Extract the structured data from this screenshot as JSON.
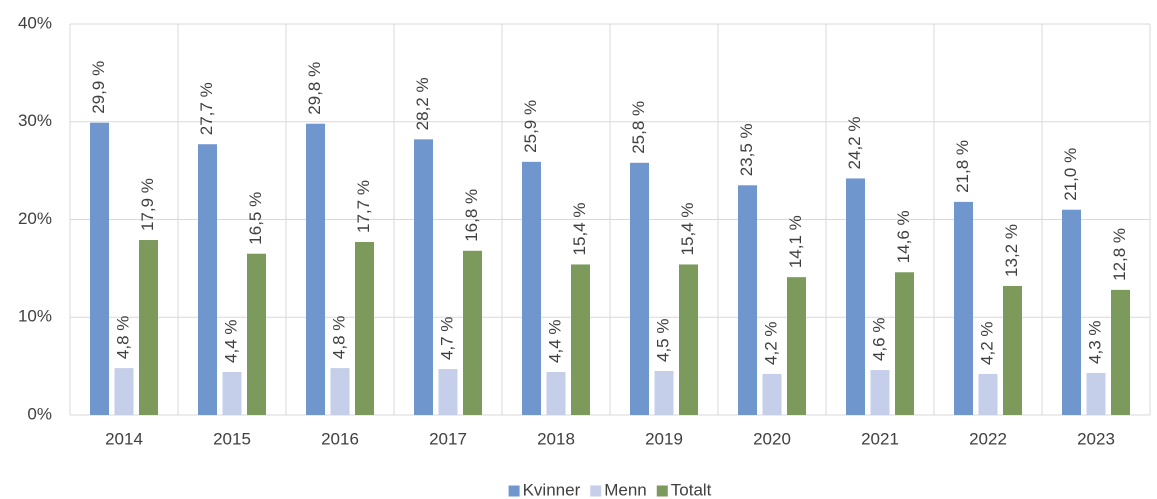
{
  "chart_data": {
    "type": "bar",
    "categories": [
      "2014",
      "2015",
      "2016",
      "2017",
      "2018",
      "2019",
      "2020",
      "2021",
      "2022",
      "2023"
    ],
    "series": [
      {
        "name": "Kvinner",
        "color": "#7096ce",
        "values": [
          29.9,
          27.7,
          29.8,
          28.2,
          25.9,
          25.8,
          23.5,
          24.2,
          21.8,
          21.0
        ],
        "value_labels": [
          "29,9 %",
          "27,7 %",
          "29,8 %",
          "28,2 %",
          "25,9 %",
          "25,8 %",
          "23,5 %",
          "24,2 %",
          "21,8 %",
          "21,0 %"
        ]
      },
      {
        "name": "Menn",
        "color": "#c5cfea",
        "values": [
          4.8,
          4.4,
          4.8,
          4.7,
          4.4,
          4.5,
          4.2,
          4.6,
          4.2,
          4.3
        ],
        "value_labels": [
          "4,8 %",
          "4,4 %",
          "4,8 %",
          "4,7 %",
          "4,4 %",
          "4,5 %",
          "4,2 %",
          "4,6 %",
          "4,2 %",
          "4,3 %"
        ]
      },
      {
        "name": "Totalt",
        "color": "#7b9a5c",
        "values": [
          17.9,
          16.5,
          17.7,
          16.8,
          15.4,
          15.4,
          14.1,
          14.6,
          13.2,
          12.8
        ],
        "value_labels": [
          "17,9 %",
          "16,5 %",
          "17,7 %",
          "16,8 %",
          "15,4 %",
          "15,4 %",
          "14,1 %",
          "14,6 %",
          "13,2 %",
          "12,8 %"
        ]
      }
    ],
    "ylim": [
      0,
      40
    ],
    "yticks": [
      {
        "value": 0,
        "label": "0%"
      },
      {
        "value": 10,
        "label": "10%"
      },
      {
        "value": 20,
        "label": "20%"
      },
      {
        "value": 30,
        "label": "30%"
      },
      {
        "value": 40,
        "label": "40%"
      }
    ],
    "grid": true,
    "legend": "bottom"
  }
}
